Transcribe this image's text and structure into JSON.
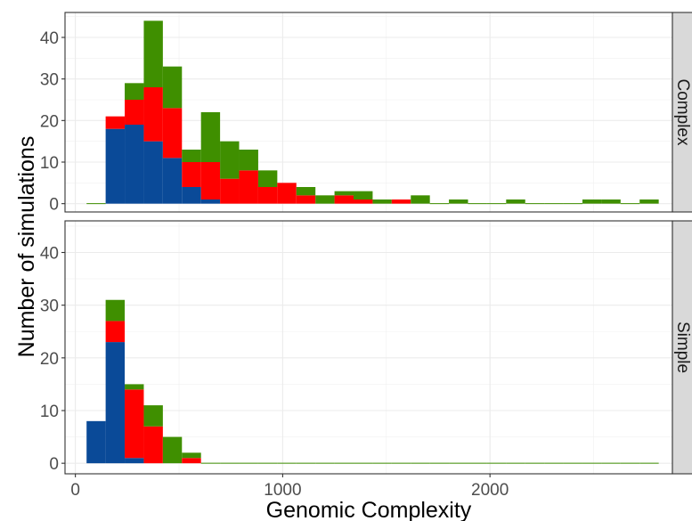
{
  "chart_data": {
    "type": "bar",
    "stacked": true,
    "title": "",
    "xlabel": "Genomic Complexity",
    "ylabel": "Number of simulations",
    "xlim": [
      -50,
      2880
    ],
    "ylim": [
      -2,
      46
    ],
    "x_ticks": [
      0,
      1000,
      2000
    ],
    "x_tick_labels": [
      "0",
      "1000",
      "2000"
    ],
    "y_ticks": [
      0,
      10,
      20,
      30,
      40
    ],
    "y_tick_labels": [
      "0",
      "10",
      "20",
      "30",
      "40"
    ],
    "grid": true,
    "legend": "none",
    "bin_width": 92,
    "bin_left_edges": [
      54,
      146,
      238,
      330,
      422,
      514,
      606,
      698,
      790,
      882,
      974,
      1066,
      1158,
      1250,
      1342,
      1434,
      1526,
      1618,
      1710,
      1802,
      1894,
      1986,
      2078,
      2170,
      2262,
      2354,
      2446,
      2538,
      2630,
      2722
    ],
    "series_colors": [
      "#0a4a98",
      "#ff0000",
      "#3f8f00"
    ],
    "panels": [
      {
        "label": "Complex",
        "series": [
          {
            "values": [
              0,
              18,
              19,
              15,
              11,
              4,
              1,
              0,
              0,
              0,
              0,
              0,
              0,
              0,
              0,
              0,
              0,
              0,
              0,
              0,
              0,
              0,
              0,
              0,
              0,
              0,
              0,
              0,
              0,
              0
            ]
          },
          {
            "values": [
              0,
              3,
              6,
              13,
              12,
              6,
              9,
              6,
              8,
              4,
              5,
              2,
              0,
              2,
              1,
              0,
              1,
              0,
              0,
              0,
              0,
              0,
              0,
              0,
              0,
              0,
              0,
              0,
              0,
              0
            ]
          },
          {
            "values": [
              0,
              0,
              4,
              16,
              10,
              3,
              12,
              9,
              5,
              4,
              0,
              2,
              2,
              1,
              2,
              1,
              0,
              2,
              0,
              1,
              0,
              0,
              1,
              0,
              0,
              0,
              1,
              1,
              0,
              1
            ]
          }
        ]
      },
      {
        "label": "Simple",
        "series": [
          {
            "values": [
              8,
              23,
              1,
              0,
              0,
              0,
              0,
              0,
              0,
              0,
              0,
              0,
              0,
              0,
              0,
              0,
              0,
              0,
              0,
              0,
              0,
              0,
              0,
              0,
              0,
              0,
              0,
              0,
              0,
              0
            ]
          },
          {
            "values": [
              0,
              4,
              13,
              7,
              0,
              1,
              0,
              0,
              0,
              0,
              0,
              0,
              0,
              0,
              0,
              0,
              0,
              0,
              0,
              0,
              0,
              0,
              0,
              0,
              0,
              0,
              0,
              0,
              0,
              0
            ]
          },
          {
            "values": [
              0,
              4,
              1,
              4,
              5,
              1,
              0,
              0,
              0,
              0,
              0,
              0,
              0,
              0,
              0,
              0,
              0,
              0,
              0,
              0,
              0,
              0,
              0,
              0,
              0,
              0,
              0,
              0,
              0,
              0
            ]
          }
        ]
      }
    ]
  }
}
